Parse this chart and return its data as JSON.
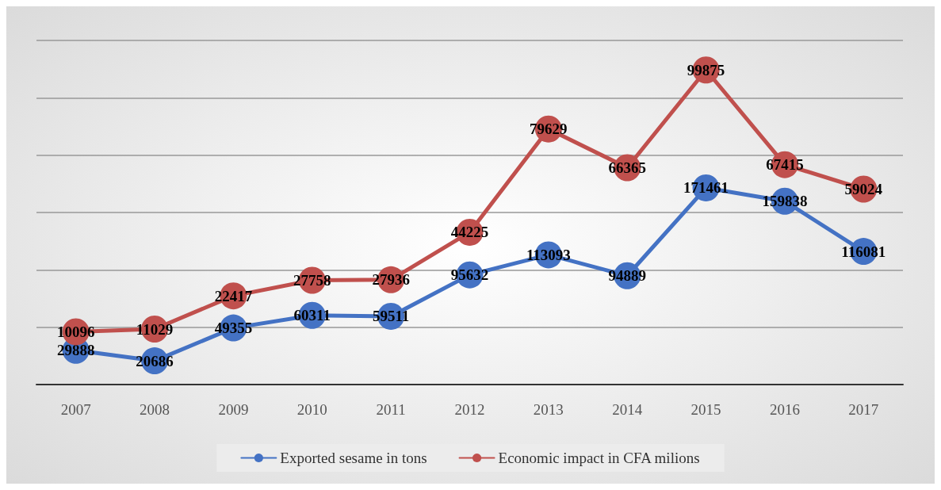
{
  "chart_data": {
    "type": "line",
    "categories": [
      "2007",
      "2008",
      "2009",
      "2010",
      "2011",
      "2012",
      "2013",
      "2014",
      "2015",
      "2016",
      "2017"
    ],
    "series": [
      {
        "name": "Exported sesame in tons",
        "color": "#4472c4",
        "values": [
          29888,
          20686,
          49355,
          60311,
          59511,
          95632,
          113093,
          94889,
          171461,
          159838,
          116081
        ]
      },
      {
        "name": "Economic impact in CFA milions",
        "color": "#c0504d",
        "axis": "y2",
        "values": [
          10096,
          11029,
          22417,
          27758,
          27936,
          44225,
          79629,
          66365,
          99875,
          67415,
          59024
        ]
      }
    ],
    "ylim": [
      0,
      300000
    ],
    "yticks": [
      {
        "value": 0,
        "label": null
      },
      {
        "value": 50000,
        "label": null
      },
      {
        "value": 100000,
        "label": null
      },
      {
        "value": 150000,
        "label": null
      },
      {
        "value": 200000,
        "label": null
      },
      {
        "value": 250000,
        "label": null
      },
      {
        "value": 300000,
        "label": null
      }
    ],
    "y2lim": [
      -8000,
      110000
    ],
    "grid": "y",
    "tick_labels": "x",
    "legend": "bottom",
    "marker": "circle",
    "line_style": "solid",
    "data_labels": true
  }
}
